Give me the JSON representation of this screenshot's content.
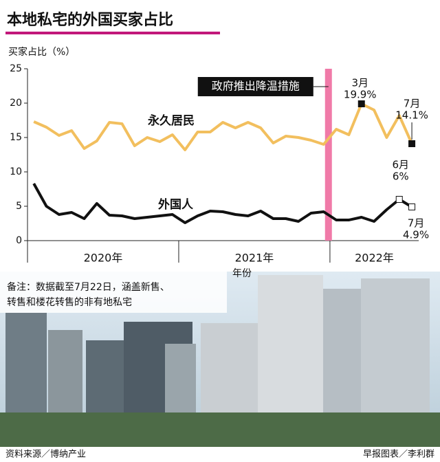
{
  "chart_data": {
    "type": "line",
    "title": "本地私宅的外国买家占比",
    "y_label": "买家占比（%）",
    "x_label": "年份",
    "categories": [
      null,
      null,
      null,
      null,
      null,
      null,
      null,
      null,
      null,
      null,
      null,
      null,
      null,
      null,
      null,
      null,
      null,
      null,
      null,
      null,
      null,
      null,
      null,
      null,
      null,
      null,
      null,
      null,
      null,
      null,
      null
    ],
    "x_groups": [
      "2020年",
      "2021年",
      "2022年"
    ],
    "ylim": [
      0,
      25
    ],
    "yticks": [
      0,
      5,
      10,
      15,
      20,
      25
    ],
    "event_label": "政府推出降温措施",
    "event_color": "#f07aa8",
    "series": [
      {
        "name": "永久居民",
        "color": "#f2bf5e",
        "marker_color": "#111111",
        "values": [
          17.3,
          16.5,
          15.3,
          16.0,
          13.4,
          14.5,
          17.2,
          17.0,
          13.8,
          15.0,
          14.4,
          15.4,
          13.2,
          15.8,
          15.8,
          17.2,
          16.4,
          17.2,
          16.4,
          14.2,
          15.2,
          15.0,
          14.6,
          14.0,
          16.2,
          15.4,
          19.9,
          19.0,
          15.0,
          18.2,
          14.1
        ],
        "point_labels": [
          null,
          null,
          null,
          null,
          null,
          null,
          null,
          null,
          null,
          null,
          null,
          null,
          null,
          null,
          null,
          null,
          null,
          null,
          null,
          null,
          null,
          null,
          null,
          null,
          null,
          null,
          "3月",
          null,
          null,
          null,
          "7月"
        ],
        "value_labels": [
          null,
          null,
          null,
          null,
          null,
          null,
          null,
          null,
          null,
          null,
          null,
          null,
          null,
          null,
          null,
          null,
          null,
          null,
          null,
          null,
          null,
          null,
          null,
          null,
          null,
          null,
          "19.9%",
          null,
          null,
          null,
          "14.1%"
        ]
      },
      {
        "name": "外国人",
        "color": "#111111",
        "marker_color": "#ffffff",
        "values": [
          8.3,
          5.0,
          3.8,
          4.1,
          3.2,
          5.4,
          3.7,
          3.6,
          3.2,
          3.4,
          3.6,
          3.8,
          2.6,
          3.6,
          4.3,
          4.2,
          3.8,
          3.6,
          4.3,
          3.2,
          3.2,
          2.8,
          4.0,
          4.2,
          3.0,
          3.0,
          3.4,
          2.8,
          4.5,
          6.0,
          4.9
        ],
        "point_labels": [
          null,
          null,
          null,
          null,
          null,
          null,
          null,
          null,
          null,
          null,
          null,
          null,
          null,
          null,
          null,
          null,
          null,
          null,
          null,
          null,
          null,
          null,
          null,
          null,
          null,
          null,
          null,
          null,
          null,
          "6月",
          "7月"
        ],
        "value_labels": [
          null,
          null,
          null,
          null,
          null,
          null,
          null,
          null,
          null,
          null,
          null,
          null,
          null,
          null,
          null,
          null,
          null,
          null,
          null,
          null,
          null,
          null,
          null,
          null,
          null,
          null,
          null,
          null,
          null,
          "6%",
          "4.9%"
        ]
      }
    ],
    "note": [
      "备注：数据截至7月22日，涵盖新售、",
      "转售和楼花转售的非有地私宅"
    ],
    "source": "资料来源／博纳产业",
    "credit": "早报图表／李利群"
  }
}
